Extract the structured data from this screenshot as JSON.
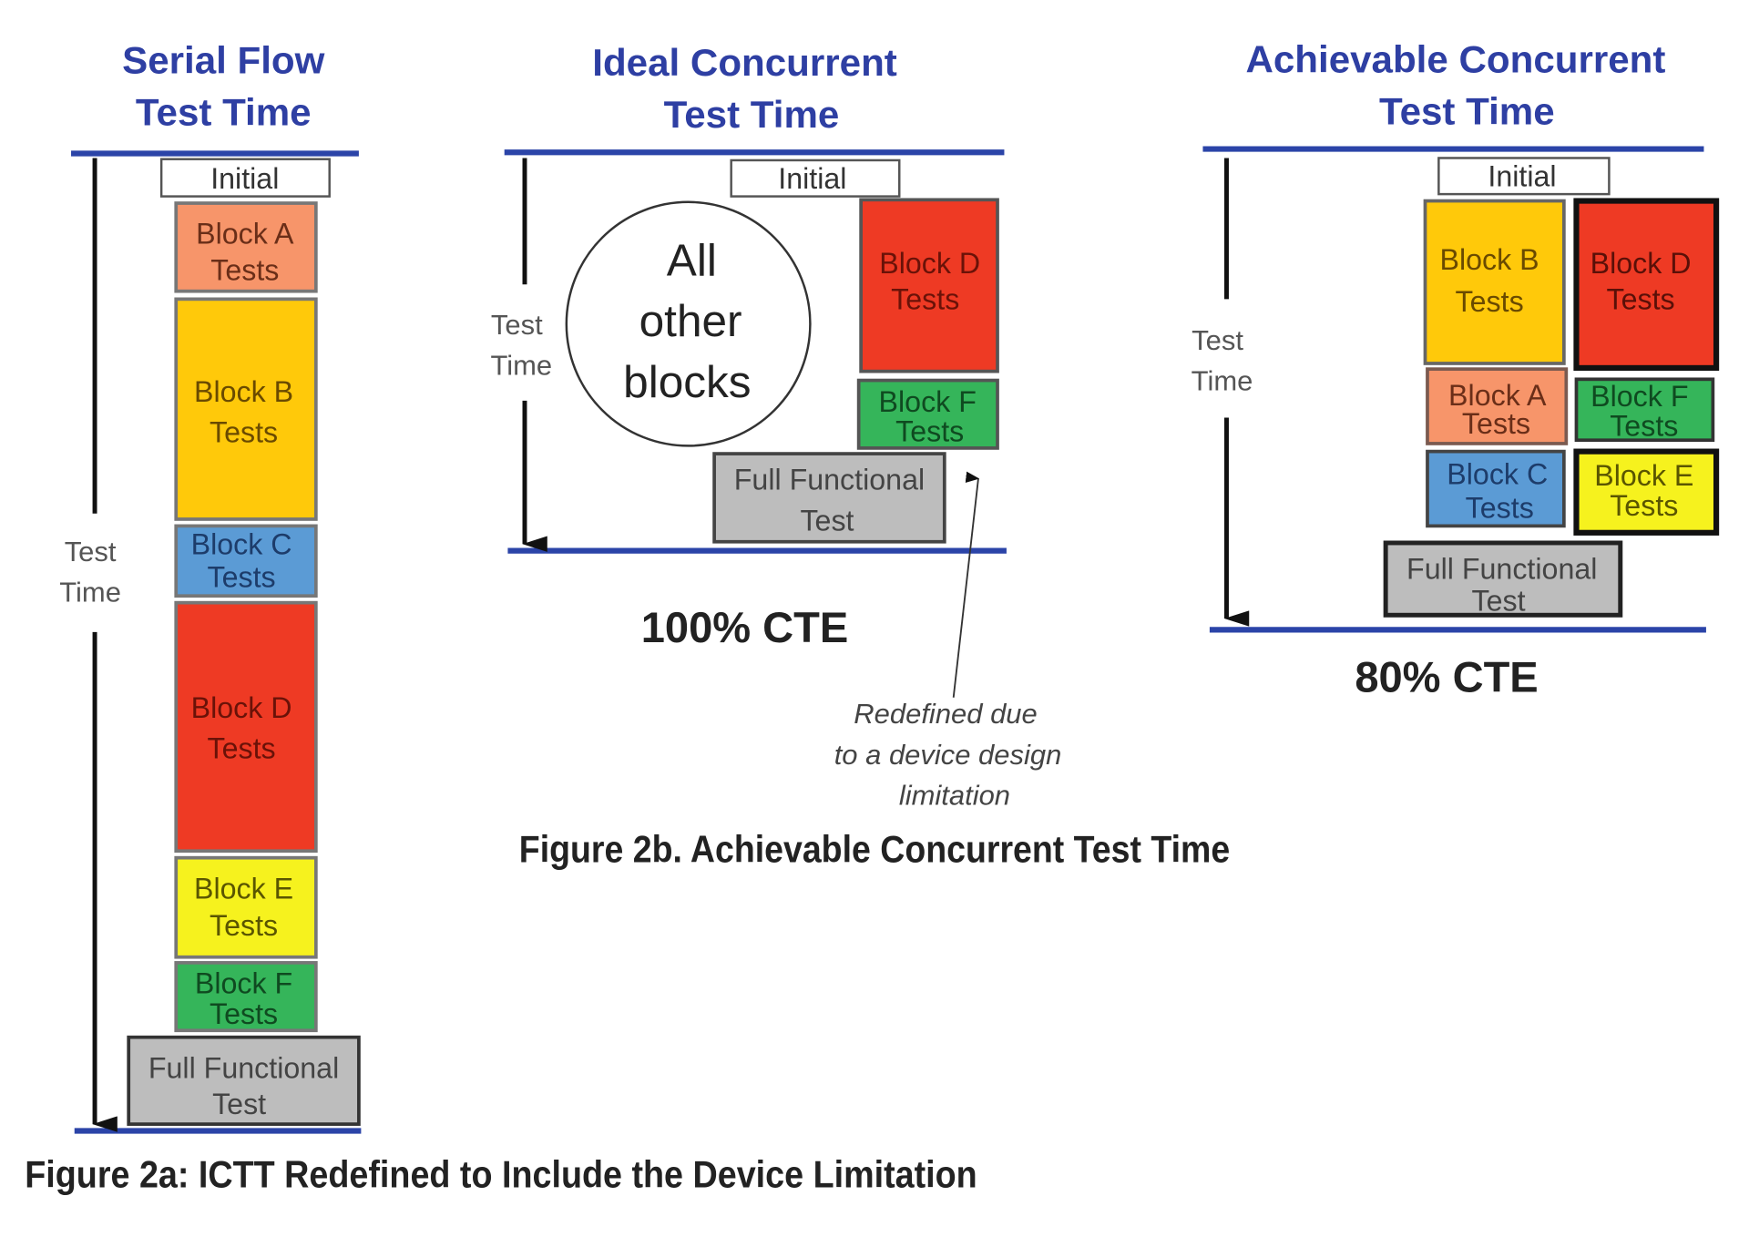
{
  "colors": {
    "title": "#2E3FA3",
    "rule": "#2B44A8",
    "initial": "#FFFFFF",
    "block_a": "#F7956A",
    "block_b": "#FFC90A",
    "block_c": "#5B9BD5",
    "block_d": "#EE3A24",
    "block_e": "#F6F21E",
    "block_f": "#35B55A",
    "full_functional": "#BDBDBD"
  },
  "labels": {
    "initial": "Initial",
    "block_a": [
      "Block A",
      "Tests"
    ],
    "block_b": [
      "Block B",
      "Tests"
    ],
    "block_c": [
      "Block C",
      "Tests"
    ],
    "block_d": [
      "Block D",
      "Tests"
    ],
    "block_e": [
      "Block E",
      "Tests"
    ],
    "block_f": [
      "Block F",
      "Tests"
    ],
    "full_functional": [
      "Full Functional",
      "Test"
    ],
    "axis": [
      "Test",
      "Time"
    ]
  },
  "panels": {
    "serial": {
      "title": [
        "Serial Flow",
        "Test Time"
      ]
    },
    "ideal": {
      "title": [
        "Ideal Concurrent",
        "Test Time"
      ],
      "circle": [
        "All",
        "other",
        "blocks"
      ],
      "cte": "100% CTE",
      "annotation": [
        "Redefined due",
        "to a device design",
        "limitation"
      ]
    },
    "achievable": {
      "title": [
        "Achievable Concurrent",
        "Test Time"
      ],
      "cte": "80% CTE"
    }
  },
  "captions": {
    "fig2a": "Figure 2a: ICTT Redefined to Include the Device Limitation",
    "fig2b": "Figure 2b. Achievable Concurrent Test Time"
  }
}
